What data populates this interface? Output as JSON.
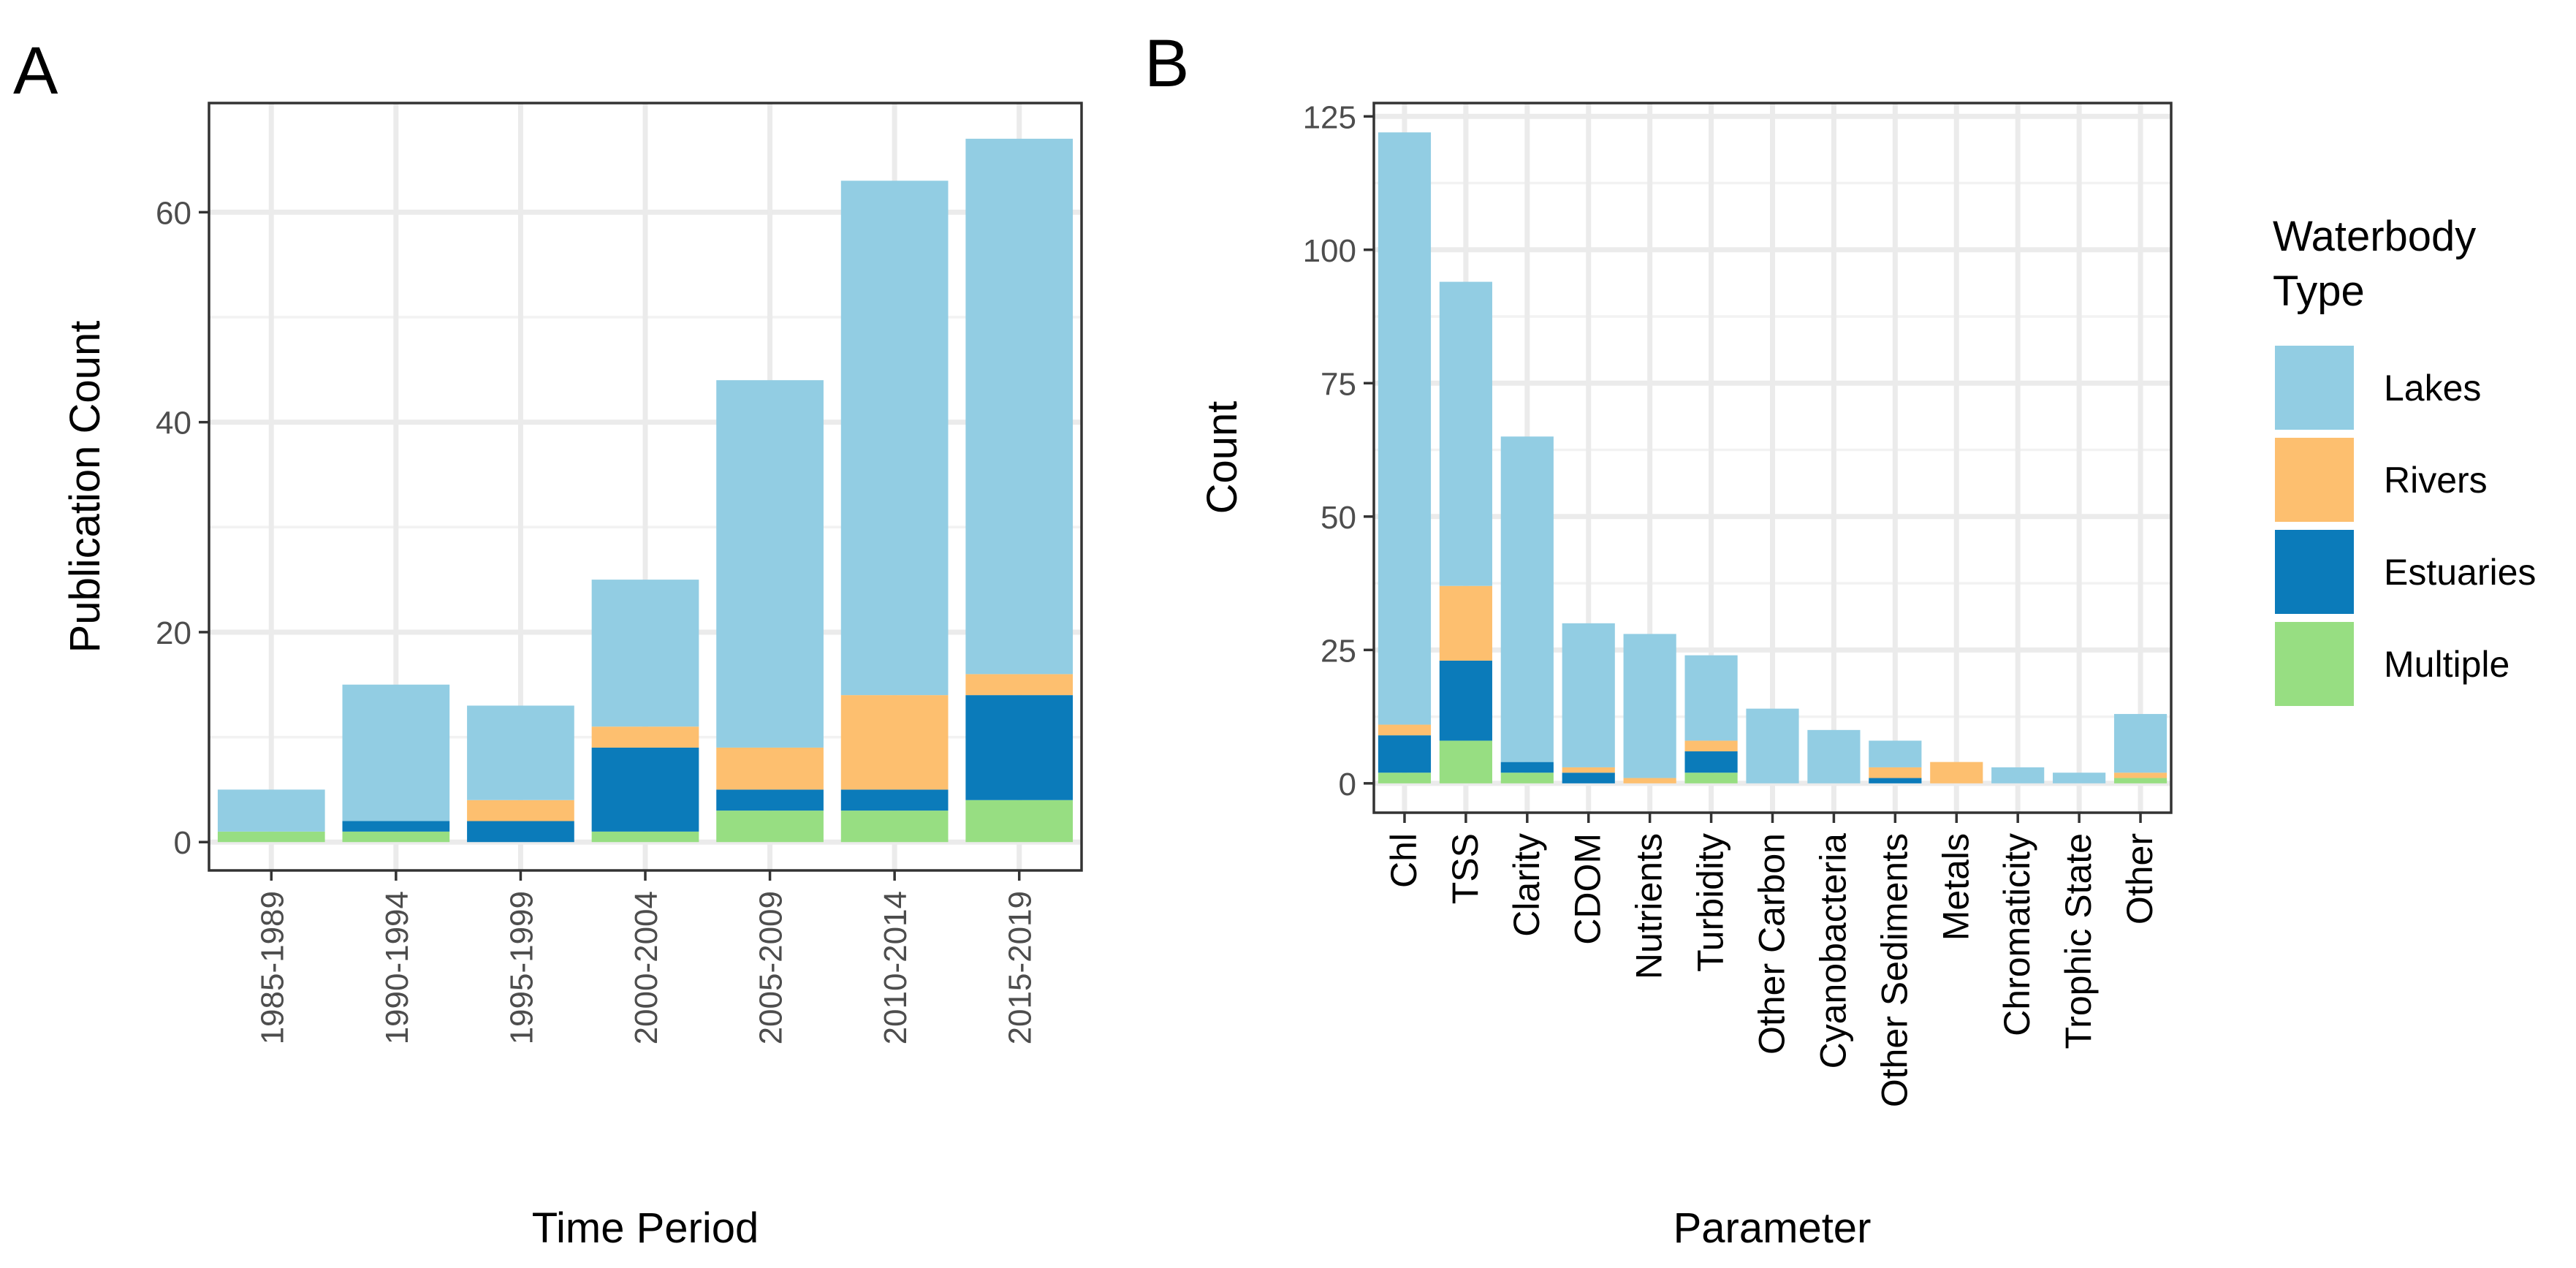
{
  "legend": {
    "title_lines": [
      "Waterbody",
      "Type"
    ],
    "entries": [
      {
        "name": "Lakes",
        "color": "#92CDE3"
      },
      {
        "name": "Rivers",
        "color": "#FDBF6F"
      },
      {
        "name": "Estuaries",
        "color": "#0B7BBA"
      },
      {
        "name": "Multiple",
        "color": "#97DE82"
      }
    ],
    "placement": "right"
  },
  "chart_data": [
    {
      "type": "bar",
      "stacked": true,
      "panel_label": "A",
      "title": "",
      "xlabel": "Time Period",
      "ylabel": "Publication Count",
      "ylim": [
        -2.7,
        70.4
      ],
      "yticks": [
        0,
        20,
        40,
        60
      ],
      "categories": [
        "1985-1989",
        "1990-1994",
        "1995-1999",
        "2000-2004",
        "2005-2009",
        "2010-2014",
        "2015-2019"
      ],
      "series": [
        {
          "name": "Multiple",
          "values": [
            1,
            1,
            0,
            1,
            3,
            3,
            4
          ]
        },
        {
          "name": "Estuaries",
          "values": [
            0,
            1,
            2,
            8,
            2,
            2,
            10
          ]
        },
        {
          "name": "Rivers",
          "values": [
            0,
            0,
            2,
            2,
            4,
            9,
            2
          ]
        },
        {
          "name": "Lakes",
          "values": [
            4,
            13,
            9,
            14,
            35,
            49,
            51
          ]
        }
      ]
    },
    {
      "type": "bar",
      "stacked": true,
      "panel_label": "B",
      "title": "",
      "xlabel": "Parameter",
      "ylabel": "Count",
      "ylim": [
        -5.5,
        127.5
      ],
      "yticks": [
        0,
        25,
        50,
        75,
        100,
        125
      ],
      "categories": [
        "Chl",
        "TSS",
        "Clarity",
        "CDOM",
        "Nutrients",
        "Turbidity",
        "Other Carbon",
        "Cyanobacteria",
        "Other Sediments",
        "Metals",
        "Chromaticity",
        "Trophic State",
        "Other"
      ],
      "series": [
        {
          "name": "Multiple",
          "values": [
            2,
            8,
            2,
            0,
            0,
            2,
            0,
            0,
            0,
            0,
            0,
            0,
            1
          ]
        },
        {
          "name": "Estuaries",
          "values": [
            7,
            15,
            2,
            2,
            0,
            4,
            0,
            0,
            1,
            0,
            0,
            0,
            0
          ]
        },
        {
          "name": "Rivers",
          "values": [
            2,
            14,
            0,
            1,
            1,
            2,
            0,
            0,
            2,
            4,
            0,
            0,
            1
          ]
        },
        {
          "name": "Lakes",
          "values": [
            111,
            57,
            61,
            27,
            27,
            16,
            14,
            10,
            5,
            0,
            3,
            2,
            11
          ]
        }
      ]
    }
  ]
}
